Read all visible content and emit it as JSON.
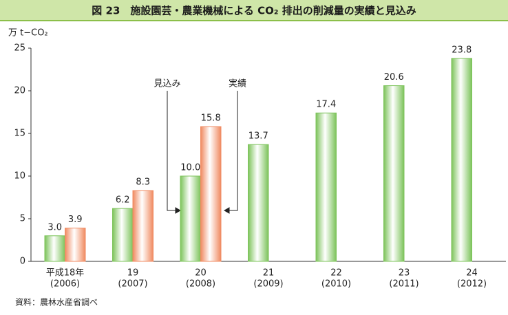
{
  "chart_data": {
    "type": "bar",
    "title": "図 23　施設園芸・農業機械による CO₂ 排出の削減量の実績と見込み",
    "y_label": "万 t−CO₂",
    "categories": [
      "平成18年",
      "19",
      "20",
      "21",
      "22",
      "23",
      "24"
    ],
    "category_years": [
      "(2006)",
      "(2007)",
      "(2008)",
      "(2009)",
      "(2010)",
      "(2011)",
      "(2012)"
    ],
    "series": [
      {
        "name": "見込み",
        "color": "#7cc35a",
        "values": [
          3.0,
          6.2,
          10.0,
          13.7,
          17.4,
          20.6,
          23.8
        ],
        "value_labels": [
          "3.0",
          "6.2",
          "10.0",
          "13.7",
          "17.4",
          "20.6",
          "23.8"
        ]
      },
      {
        "name": "実績",
        "color": "#f08a60",
        "values": [
          3.9,
          8.3,
          15.8,
          null,
          null,
          null,
          null
        ],
        "value_labels": [
          "3.9",
          "8.3",
          "15.8",
          null,
          null,
          null,
          null
        ]
      }
    ],
    "ylim": [
      0,
      25
    ],
    "yticks": [
      0,
      5,
      10,
      15,
      20,
      25
    ],
    "grid": false,
    "source": "資料：農林水産省調べ"
  }
}
